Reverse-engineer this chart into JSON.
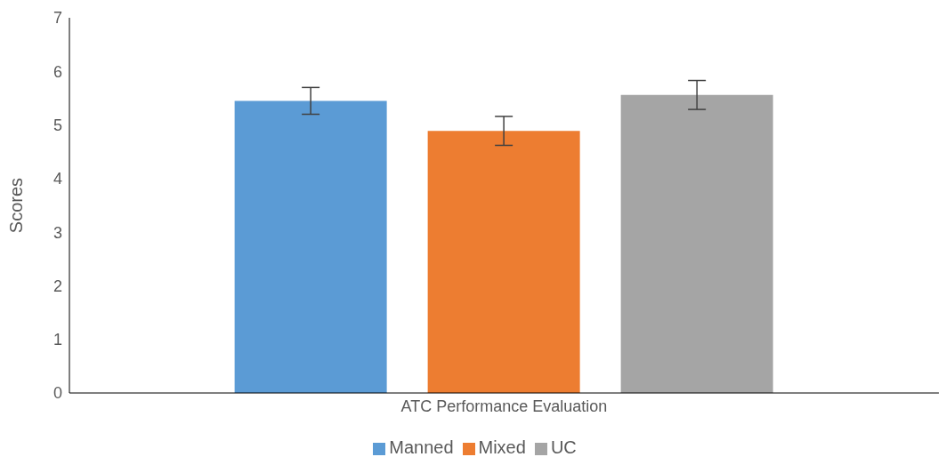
{
  "chart_data": {
    "type": "bar",
    "ylabel": "Scores",
    "categories": [
      "ATC Performance Evaluation"
    ],
    "series": [
      {
        "name": "Manned",
        "color": "#5b9bd5",
        "values": [
          5.45
        ],
        "errors": [
          0.25
        ]
      },
      {
        "name": "Mixed",
        "color": "#ed7d31",
        "values": [
          4.89
        ],
        "errors": [
          0.27
        ]
      },
      {
        "name": "UC",
        "color": "#a5a5a5",
        "values": [
          5.56
        ],
        "errors": [
          0.27
        ]
      }
    ],
    "ylim": [
      0,
      7
    ],
    "yticks": [
      0,
      1,
      2,
      3,
      4,
      5,
      6,
      7
    ],
    "grid": false,
    "legend": "bottom"
  }
}
